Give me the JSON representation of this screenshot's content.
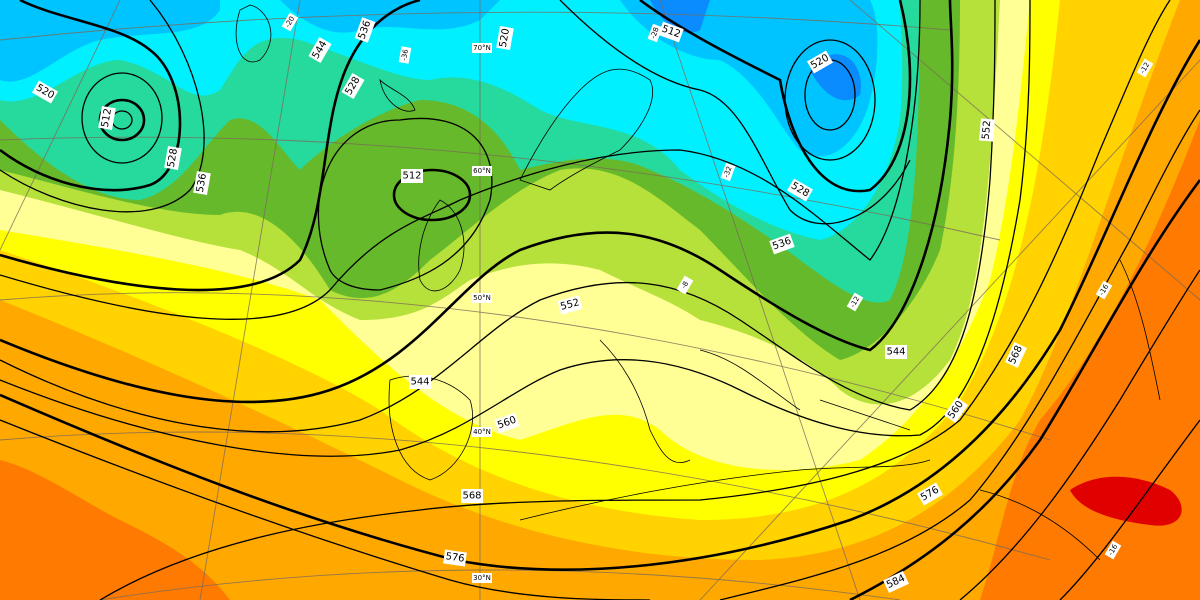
{
  "colors": {
    "dark_blue": "#0a8cff",
    "blue": "#00c4ff",
    "cyan": "#00f0ff",
    "teal": "#26d99c",
    "green": "#66b92a",
    "light_green": "#b6e03a",
    "pale_yellow": "#ffff96",
    "yellow": "#ffff00",
    "gold": "#ffd200",
    "orange": "#ffa800",
    "dark_orange": "#ff7a00",
    "red": "#e00000"
  },
  "height_contours": {
    "labels": [
      "512",
      "520",
      "528",
      "536",
      "544",
      "536",
      "528",
      "520",
      "512",
      "512",
      "520",
      "528",
      "536",
      "544",
      "552",
      "560",
      "568",
      "576",
      "584",
      "576",
      "568",
      "560",
      "552",
      "544"
    ]
  },
  "latitude_labels": [
    "70°N",
    "60°N",
    "50°N",
    "40°N",
    "30°N"
  ],
  "temperature_labels": [
    "-36",
    "-28",
    "-12",
    "-32",
    "-20",
    "-12",
    "-16",
    "-8",
    "-16"
  ]
}
